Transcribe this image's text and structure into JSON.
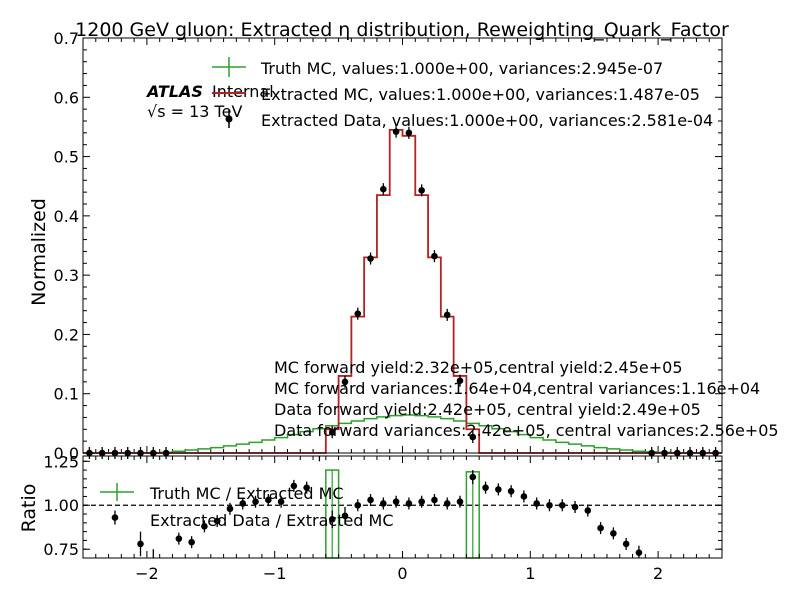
{
  "figure": {
    "title": "1200 GeV gluon: Extracted η distribution, Reweighting_Quark_Factor",
    "atlas_label": "ATLAS",
    "atlas_status": "Internal",
    "energy_label": "√s = 13 TeV",
    "colors": {
      "truth": "#2ca02c",
      "extracted_mc": "#b22222",
      "data": "#000000"
    }
  },
  "chart_data": [
    {
      "type": "line",
      "panel": "main",
      "ylabel": "Normalized",
      "xlim": [
        -2.5,
        2.5
      ],
      "ylim": [
        0,
        0.7
      ],
      "yticks": [
        0.0,
        0.1,
        0.2,
        0.3,
        0.4,
        0.5,
        0.6,
        0.7
      ],
      "ytick_labels": [
        "0.0",
        "0.1",
        "0.2",
        "0.3",
        "0.4",
        "0.5",
        "0.6",
        "0.7"
      ],
      "legend": [
        "Truth MC, values:1.000e+00, variances:2.945e-07",
        "Extracted MC, values:1.000e+00, variances:1.487e-05",
        "Extracted Data, values:1.000e+00, variances:2.581e-04"
      ],
      "annotations": [
        "MC forward yield:2.32e+05,central yield:2.45e+05",
        "MC forward variances:1.64e+04,central variances:1.16e+04",
        "Data forward yield:2.42e+05, central yield:2.49e+05",
        "Data forward variances:2.42e+05, central variances:2.56e+05"
      ],
      "bin_edges": [
        -2.5,
        -2.4,
        -2.3,
        -2.2,
        -2.1,
        -2.0,
        -1.9,
        -1.8,
        -1.7,
        -1.6,
        -1.5,
        -1.4,
        -1.3,
        -1.2,
        -1.1,
        -1.0,
        -0.9,
        -0.8,
        -0.7,
        -0.6,
        -0.5,
        -0.4,
        -0.3,
        -0.2,
        -0.1,
        0.0,
        0.1,
        0.2,
        0.3,
        0.4,
        0.5,
        0.6,
        0.7,
        0.8,
        0.9,
        1.0,
        1.1,
        1.2,
        1.3,
        1.4,
        1.5,
        1.6,
        1.7,
        1.8,
        1.9,
        2.0,
        2.1,
        2.2,
        2.3,
        2.4,
        2.5
      ],
      "series": [
        {
          "name": "Truth MC",
          "style": "step",
          "values": [
            0.0,
            0.0,
            0.0,
            0.0,
            0.0,
            0.0,
            0.001,
            0.003,
            0.005,
            0.007,
            0.009,
            0.012,
            0.015,
            0.018,
            0.022,
            0.026,
            0.031,
            0.036,
            0.041,
            0.046,
            0.05,
            0.054,
            0.058,
            0.061,
            0.063,
            0.064,
            0.063,
            0.061,
            0.058,
            0.054,
            0.05,
            0.046,
            0.041,
            0.036,
            0.031,
            0.026,
            0.022,
            0.018,
            0.015,
            0.012,
            0.009,
            0.007,
            0.005,
            0.003,
            0.002,
            0.001,
            0.0,
            0.0,
            0.0,
            0.0
          ]
        },
        {
          "name": "Extracted MC",
          "style": "step",
          "values": [
            0.0,
            0.0,
            0.0,
            0.0,
            0.0,
            0.0,
            0.0,
            0.0,
            0.0,
            0.0,
            0.0,
            0.0,
            0.0,
            0.0,
            0.0,
            0.0,
            0.0,
            0.0,
            0.0,
            0.0,
            0.0,
            0.0,
            0.0,
            0.0,
            0.0,
            0.0,
            0.0,
            0.0,
            0.0,
            0.0,
            0.0,
            0.0,
            0.0,
            0.0,
            0.0,
            0.0,
            0.0,
            0.0,
            0.0,
            0.0,
            0.0,
            0.0,
            0.0,
            0.0,
            0.0,
            0.0,
            0.0,
            0.0,
            0.0,
            0.0
          ],
          "central_values": [
            0.0,
            0.04,
            0.13,
            0.23,
            0.33,
            0.435,
            0.545,
            0.535,
            0.435,
            0.33,
            0.23,
            0.13,
            0.04,
            0.0
          ]
        },
        {
          "name": "Extracted Data",
          "style": "points",
          "x": [
            -2.45,
            -2.35,
            -2.25,
            -2.15,
            -2.05,
            -1.95,
            -1.85,
            -0.55,
            -0.45,
            -0.35,
            -0.25,
            -0.15,
            -0.05,
            0.05,
            0.15,
            0.25,
            0.35,
            0.45,
            0.55,
            1.95,
            2.05,
            2.15,
            2.25,
            2.35,
            2.45
          ],
          "y": [
            0.0,
            0.0,
            0.0,
            0.0,
            0.0,
            0.0,
            0.0,
            0.035,
            0.12,
            0.235,
            0.328,
            0.445,
            0.542,
            0.54,
            0.443,
            0.332,
            0.233,
            0.122,
            0.027,
            0.0,
            0.0,
            0.0,
            0.0,
            0.0,
            0.0
          ]
        }
      ]
    },
    {
      "type": "scatter",
      "panel": "ratio",
      "xlabel": "",
      "ylabel": "Ratio",
      "xlim": [
        -2.5,
        2.5
      ],
      "ylim": [
        0.7,
        1.28
      ],
      "yticks": [
        0.75,
        1.0,
        1.25
      ],
      "ytick_labels": [
        "0.75",
        "1.00",
        "1.25"
      ],
      "xticks": [
        -2,
        -1,
        0,
        1,
        2
      ],
      "xtick_labels": [
        "−2",
        "−1",
        "0",
        "1",
        "2"
      ],
      "reference_line": 1.0,
      "legend": [
        "Truth MC / Extracted MC",
        "Extracted Data / Extracted MC"
      ],
      "series": [
        {
          "name": "Truth MC / Extracted MC",
          "style": "boxes",
          "x_low": [
            -0.6,
            0.5
          ],
          "x_high": [
            -0.5,
            0.6
          ],
          "y": [
            1.2,
            1.19
          ],
          "yerr": [
            0.5,
            0.5
          ]
        },
        {
          "name": "Extracted Data / Extracted MC",
          "style": "points",
          "x": [
            -2.25,
            -2.05,
            -1.95,
            -1.75,
            -1.65,
            -1.55,
            -1.45,
            -1.35,
            -1.25,
            -1.15,
            -1.05,
            -0.95,
            -0.85,
            -0.75,
            -0.65,
            -0.55,
            -0.45,
            -0.35,
            -0.25,
            -0.15,
            -0.05,
            0.05,
            0.15,
            0.25,
            0.35,
            0.45,
            0.55,
            0.65,
            0.75,
            0.85,
            0.95,
            1.05,
            1.15,
            1.25,
            1.35,
            1.45,
            1.55,
            1.65,
            1.75,
            1.85
          ],
          "y": [
            0.93,
            0.78,
            0.69,
            0.81,
            0.79,
            0.88,
            0.91,
            0.98,
            1.01,
            1.02,
            1.03,
            1.02,
            1.11,
            1.1,
            1.3,
            0.92,
            0.94,
            1.0,
            1.03,
            1.01,
            1.02,
            1.01,
            1.02,
            1.03,
            1.01,
            1.02,
            1.16,
            1.1,
            1.09,
            1.08,
            1.05,
            1.01,
            1.0,
            1.0,
            0.99,
            0.97,
            0.87,
            0.84,
            0.78,
            0.73
          ],
          "yerr": [
            0.04,
            0.07,
            0.06,
            0.03,
            0.03,
            0.02,
            0.02,
            0.015,
            0.015,
            0.015,
            0.015,
            0.015,
            0.02,
            0.02,
            0.05,
            0.05,
            0.05,
            0.02,
            0.015,
            0.01,
            0.01,
            0.01,
            0.01,
            0.015,
            0.02,
            0.03,
            0.04,
            0.02,
            0.015,
            0.015,
            0.015,
            0.01,
            0.01,
            0.01,
            0.015,
            0.015,
            0.02,
            0.02,
            0.03,
            0.04
          ]
        }
      ]
    }
  ]
}
